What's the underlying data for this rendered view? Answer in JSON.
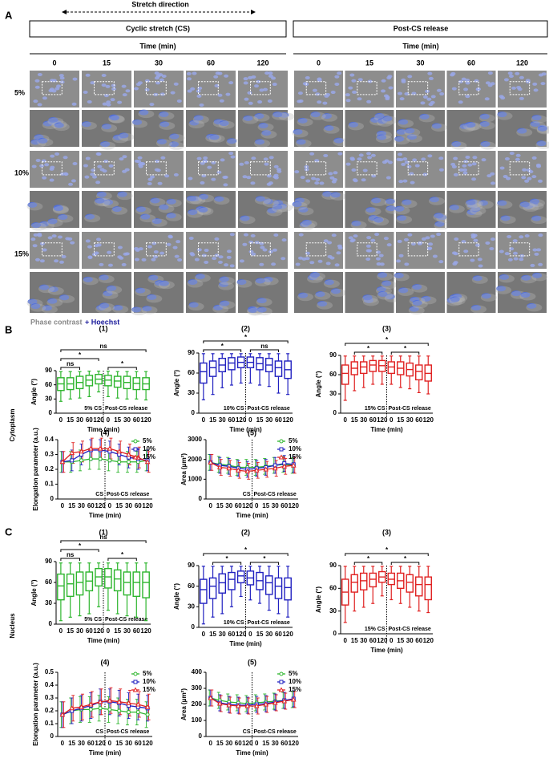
{
  "figure": {
    "panel_labels": [
      "A",
      "B",
      "C"
    ],
    "stretch_direction": "Stretch direction",
    "cs_title": "Cyclic stretch (CS)",
    "release_title": "Post-CS release",
    "time_label": "Time (min)",
    "time_points": [
      "0",
      "15",
      "30",
      "60",
      "120"
    ],
    "strain_labels": [
      "5%",
      "10%",
      "15%"
    ],
    "caption_phase": "Phase contrast",
    "caption_plus": "+ Hoechst",
    "section_labels": [
      "Cytoplasm",
      "Nucleus"
    ]
  },
  "chart_data": [
    {
      "type": "box",
      "label": "(1)",
      "ylabel": "Angle (°)",
      "xlabel": "Time (min)",
      "categories": [
        "0",
        "15",
        "30",
        "60",
        "120",
        "0",
        "15",
        "30",
        "60",
        "120"
      ],
      "ylim": [
        0,
        90
      ],
      "yticks": [
        0,
        30,
        60,
        90
      ],
      "annotations": [
        "5% CS",
        "Post-CS release"
      ],
      "significance": [
        "ns",
        "*",
        "ns",
        "*"
      ],
      "series": [
        {
          "color": "#2db52d",
          "min": [
            25,
            30,
            32,
            35,
            45,
            35,
            32,
            30,
            30,
            28
          ],
          "q1": [
            48,
            50,
            52,
            58,
            62,
            58,
            55,
            52,
            50,
            50
          ],
          "median": [
            62,
            62,
            65,
            70,
            72,
            70,
            68,
            65,
            63,
            62
          ],
          "q3": [
            75,
            75,
            78,
            80,
            82,
            80,
            78,
            78,
            75,
            75
          ],
          "max": [
            88,
            88,
            88,
            89,
            89,
            89,
            88,
            88,
            88,
            88
          ]
        }
      ]
    },
    {
      "type": "box",
      "label": "(2)",
      "ylabel": "Angle (°)",
      "xlabel": "Time (min)",
      "categories": [
        "0",
        "15",
        "30",
        "60",
        "120",
        "0",
        "15",
        "30",
        "60",
        "120"
      ],
      "ylim": [
        0,
        90
      ],
      "yticks": [
        0,
        30,
        60,
        90
      ],
      "annotations": [
        "10% CS",
        "Post-CS release"
      ],
      "significance": [
        "*",
        "*",
        "ns"
      ],
      "series": [
        {
          "color": "#2020c0",
          "min": [
            20,
            28,
            38,
            42,
            45,
            45,
            42,
            40,
            30,
            28
          ],
          "q1": [
            45,
            55,
            62,
            65,
            68,
            68,
            65,
            62,
            55,
            52
          ],
          "median": [
            62,
            68,
            72,
            75,
            76,
            76,
            74,
            72,
            68,
            65
          ],
          "q3": [
            75,
            78,
            82,
            83,
            84,
            84,
            83,
            82,
            78,
            78
          ],
          "max": [
            89,
            89,
            89,
            89,
            89,
            89,
            89,
            89,
            89,
            89
          ]
        }
      ]
    },
    {
      "type": "box",
      "label": "(3)",
      "ylabel": "Angle (°)",
      "xlabel": "Time (min)",
      "categories": [
        "0",
        "15",
        "30",
        "60",
        "120",
        "0",
        "15",
        "30",
        "60",
        "120"
      ],
      "ylim": [
        0,
        90
      ],
      "yticks": [
        0,
        30,
        60,
        90
      ],
      "annotations": [
        "15% CS",
        "Post-CS release"
      ],
      "significance": [
        "*",
        "*",
        "*"
      ],
      "series": [
        {
          "color": "#e02020",
          "min": [
            20,
            35,
            40,
            45,
            45,
            45,
            40,
            38,
            32,
            30
          ],
          "q1": [
            45,
            60,
            62,
            65,
            65,
            62,
            60,
            58,
            52,
            50
          ],
          "median": [
            62,
            70,
            72,
            75,
            74,
            72,
            70,
            68,
            65,
            62
          ],
          "q3": [
            75,
            80,
            80,
            82,
            82,
            80,
            80,
            78,
            75,
            75
          ],
          "max": [
            89,
            89,
            89,
            89,
            89,
            89,
            89,
            89,
            89,
            89
          ]
        }
      ]
    },
    {
      "type": "line",
      "label": "(4)",
      "ylabel": "Elongation parameter (a.u.)",
      "xlabel": "Time (min)",
      "categories": [
        "0",
        "15",
        "30",
        "60",
        "120",
        "0",
        "15",
        "30",
        "60",
        "120"
      ],
      "ylim": [
        0,
        0.4
      ],
      "yticks": [
        0,
        0.1,
        0.2,
        0.3,
        0.4
      ],
      "annotations": [
        "CS",
        "Post-CS release"
      ],
      "legend": "upper right",
      "series": [
        {
          "name": "5%",
          "color": "#2db52d",
          "values": [
            0.25,
            0.25,
            0.26,
            0.27,
            0.27,
            0.26,
            0.25,
            0.25,
            0.25,
            0.26
          ],
          "errors": [
            0.07,
            0.07,
            0.07,
            0.07,
            0.07,
            0.07,
            0.07,
            0.07,
            0.07,
            0.07
          ]
        },
        {
          "name": "10%",
          "color": "#2020c0",
          "values": [
            0.25,
            0.26,
            0.3,
            0.33,
            0.33,
            0.32,
            0.3,
            0.28,
            0.27,
            0.26
          ],
          "errors": [
            0.07,
            0.07,
            0.07,
            0.07,
            0.07,
            0.07,
            0.07,
            0.07,
            0.07,
            0.07
          ]
        },
        {
          "name": "15%",
          "color": "#e02020",
          "values": [
            0.25,
            0.31,
            0.32,
            0.34,
            0.34,
            0.34,
            0.32,
            0.3,
            0.28,
            0.25
          ],
          "errors": [
            0.07,
            0.07,
            0.07,
            0.07,
            0.07,
            0.07,
            0.07,
            0.07,
            0.07,
            0.07
          ]
        }
      ]
    },
    {
      "type": "line",
      "label": "(5)",
      "ylabel": "Area (μm²)",
      "xlabel": "Time (min)",
      "categories": [
        "0",
        "15",
        "30",
        "60",
        "120",
        "0",
        "15",
        "30",
        "60",
        "120"
      ],
      "ylim": [
        0,
        3000
      ],
      "yticks": [
        0,
        1000,
        2000,
        3000
      ],
      "annotations": [
        "CS",
        "Post-CS release"
      ],
      "legend": "upper right",
      "series": [
        {
          "name": "5%",
          "color": "#2db52d",
          "values": [
            1850,
            1750,
            1700,
            1600,
            1600,
            1600,
            1650,
            1700,
            1750,
            1700
          ],
          "errors": [
            400,
            400,
            400,
            400,
            400,
            400,
            400,
            400,
            400,
            400
          ]
        },
        {
          "name": "10%",
          "color": "#2020c0",
          "values": [
            1850,
            1700,
            1650,
            1550,
            1500,
            1550,
            1600,
            1700,
            1800,
            1750
          ],
          "errors": [
            400,
            400,
            400,
            400,
            400,
            400,
            400,
            400,
            400,
            400
          ]
        },
        {
          "name": "15%",
          "color": "#e02020",
          "values": [
            1850,
            1600,
            1550,
            1450,
            1400,
            1450,
            1500,
            1550,
            1650,
            1700
          ],
          "errors": [
            400,
            400,
            400,
            400,
            400,
            400,
            400,
            400,
            400,
            400
          ]
        }
      ]
    },
    {
      "type": "box",
      "label": "(1)",
      "ylabel": "Angle (°)",
      "xlabel": "Time (min)",
      "categories": [
        "0",
        "15",
        "30",
        "60",
        "120",
        "0",
        "15",
        "30",
        "60",
        "120"
      ],
      "ylim": [
        0,
        90
      ],
      "yticks": [
        0,
        30,
        60,
        90
      ],
      "annotations": [
        "5% CS",
        "Post-CS release"
      ],
      "significance": [
        "ns",
        "*",
        "ns",
        "*"
      ],
      "series": [
        {
          "color": "#2db52d",
          "min": [
            5,
            10,
            12,
            15,
            25,
            20,
            15,
            12,
            10,
            5
          ],
          "q1": [
            35,
            40,
            42,
            48,
            55,
            52,
            48,
            42,
            40,
            38
          ],
          "median": [
            55,
            58,
            60,
            62,
            68,
            68,
            65,
            60,
            60,
            60
          ],
          "q3": [
            72,
            72,
            75,
            75,
            80,
            80,
            78,
            75,
            75,
            75
          ],
          "max": [
            88,
            88,
            88,
            88,
            88,
            88,
            88,
            88,
            88,
            88
          ]
        }
      ]
    },
    {
      "type": "box",
      "label": "(2)",
      "ylabel": "Angle (°)",
      "xlabel": "Time (min)",
      "categories": [
        "0",
        "15",
        "30",
        "60",
        "120",
        "0",
        "15",
        "30",
        "60",
        "120"
      ],
      "ylim": [
        0,
        90
      ],
      "yticks": [
        0,
        30,
        60,
        90
      ],
      "annotations": [
        "10% CS",
        "Post-CS release"
      ],
      "significance": [
        "*",
        "*",
        "*"
      ],
      "series": [
        {
          "color": "#2020c0",
          "min": [
            5,
            15,
            20,
            30,
            45,
            40,
            35,
            25,
            20,
            15
          ],
          "q1": [
            35,
            42,
            50,
            55,
            65,
            62,
            55,
            48,
            42,
            40
          ],
          "median": [
            55,
            60,
            65,
            70,
            75,
            72,
            68,
            65,
            60,
            58
          ],
          "q3": [
            70,
            72,
            78,
            80,
            82,
            82,
            80,
            75,
            72,
            72
          ],
          "max": [
            89,
            89,
            89,
            89,
            89,
            89,
            89,
            89,
            89,
            89
          ]
        }
      ]
    },
    {
      "type": "box",
      "label": "(3)",
      "ylabel": "Angle (°)",
      "xlabel": "Time (min)",
      "categories": [
        "0",
        "15",
        "30",
        "60",
        "120",
        "0",
        "15",
        "30",
        "60",
        "120"
      ],
      "ylim": [
        0,
        90
      ],
      "yticks": [
        0,
        30,
        60,
        90
      ],
      "annotations": [
        "15% CS",
        "Post-CS release"
      ],
      "significance": [
        "*",
        "*",
        "*"
      ],
      "series": [
        {
          "color": "#e02020",
          "min": [
            15,
            30,
            35,
            40,
            50,
            45,
            40,
            35,
            30,
            28
          ],
          "q1": [
            38,
            55,
            58,
            62,
            68,
            65,
            60,
            55,
            50,
            45
          ],
          "median": [
            55,
            68,
            70,
            72,
            75,
            72,
            70,
            68,
            65,
            65
          ],
          "q3": [
            72,
            78,
            80,
            80,
            82,
            80,
            80,
            78,
            75,
            75
          ],
          "max": [
            89,
            89,
            89,
            89,
            89,
            89,
            89,
            89,
            89,
            89
          ]
        }
      ]
    },
    {
      "type": "line",
      "label": "(4)",
      "ylabel": "Elongation parameter (a.u.)",
      "xlabel": "Time (min)",
      "categories": [
        "0",
        "15",
        "30",
        "60",
        "120",
        "0",
        "15",
        "30",
        "60",
        "120"
      ],
      "ylim": [
        0,
        0.5
      ],
      "yticks": [
        0,
        0.1,
        0.2,
        0.3,
        0.4,
        0.5
      ],
      "annotations": [
        "CS",
        "Post-CS release"
      ],
      "legend": "upper right",
      "series": [
        {
          "name": "5%",
          "color": "#2db52d",
          "values": [
            0.17,
            0.2,
            0.21,
            0.21,
            0.22,
            0.21,
            0.2,
            0.19,
            0.19,
            0.17
          ],
          "errors": [
            0.1,
            0.1,
            0.1,
            0.1,
            0.1,
            0.1,
            0.1,
            0.1,
            0.1,
            0.1
          ]
        },
        {
          "name": "10%",
          "color": "#2020c0",
          "values": [
            0.17,
            0.2,
            0.22,
            0.24,
            0.27,
            0.27,
            0.26,
            0.24,
            0.23,
            0.22
          ],
          "errors": [
            0.1,
            0.1,
            0.1,
            0.1,
            0.1,
            0.1,
            0.1,
            0.1,
            0.1,
            0.1
          ]
        },
        {
          "name": "15%",
          "color": "#e02020",
          "values": [
            0.17,
            0.22,
            0.23,
            0.25,
            0.27,
            0.28,
            0.27,
            0.26,
            0.25,
            0.23
          ],
          "errors": [
            0.1,
            0.1,
            0.1,
            0.1,
            0.1,
            0.1,
            0.1,
            0.1,
            0.1,
            0.1
          ]
        }
      ]
    },
    {
      "type": "line",
      "label": "(5)",
      "ylabel": "Area (μm²)",
      "xlabel": "Time (min)",
      "categories": [
        "0",
        "15",
        "30",
        "60",
        "120",
        "0",
        "15",
        "30",
        "60",
        "120"
      ],
      "ylim": [
        0,
        400
      ],
      "yticks": [
        0,
        100,
        200,
        300,
        400
      ],
      "annotations": [
        "CS",
        "Post-CS release"
      ],
      "legend": "upper right",
      "series": [
        {
          "name": "5%",
          "color": "#2db52d",
          "values": [
            240,
            225,
            215,
            210,
            205,
            210,
            215,
            220,
            225,
            230
          ],
          "errors": [
            50,
            50,
            50,
            50,
            50,
            50,
            50,
            50,
            50,
            50
          ]
        },
        {
          "name": "10%",
          "color": "#2020c0",
          "values": [
            240,
            210,
            200,
            195,
            195,
            200,
            205,
            215,
            225,
            235
          ],
          "errors": [
            50,
            50,
            50,
            50,
            50,
            50,
            50,
            50,
            50,
            50
          ]
        },
        {
          "name": "15%",
          "color": "#e02020",
          "values": [
            240,
            205,
            195,
            190,
            190,
            190,
            200,
            210,
            220,
            230
          ],
          "errors": [
            50,
            50,
            50,
            50,
            50,
            50,
            50,
            50,
            50,
            50
          ]
        }
      ]
    }
  ]
}
